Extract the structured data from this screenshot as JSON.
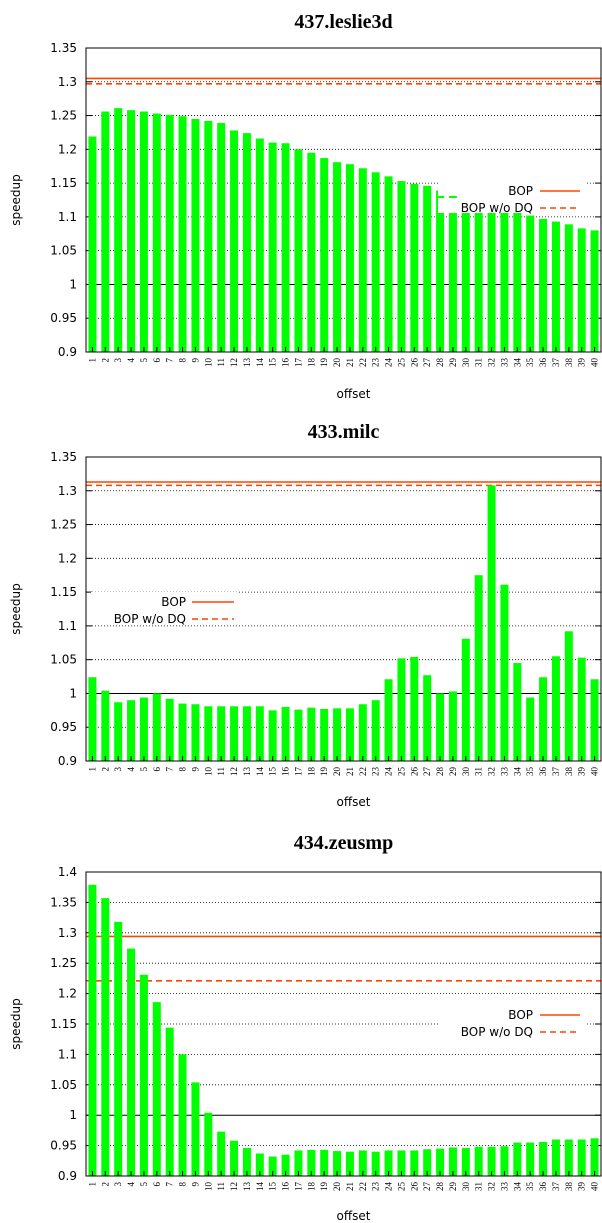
{
  "chart_data": [
    {
      "type": "bar",
      "title": "437.leslie3d",
      "xlabel": "offset",
      "ylabel": "speedup",
      "ylim": [
        0.9,
        1.35
      ],
      "yticks": [
        "0.9",
        "0.95",
        "1",
        "1.05",
        "1.1",
        "1.15",
        "1.2",
        "1.25",
        "1.3",
        "1.35"
      ],
      "categories": [
        "1",
        "2",
        "3",
        "4",
        "5",
        "6",
        "7",
        "8",
        "9",
        "10",
        "11",
        "12",
        "13",
        "14",
        "15",
        "16",
        "17",
        "18",
        "19",
        "20",
        "21",
        "22",
        "23",
        "24",
        "25",
        "26",
        "27",
        "28",
        "29",
        "30",
        "31",
        "32",
        "33",
        "34",
        "35",
        "36",
        "37",
        "38",
        "39",
        "40"
      ],
      "values": [
        1.219,
        1.256,
        1.261,
        1.258,
        1.256,
        1.253,
        1.251,
        1.249,
        1.245,
        1.242,
        1.239,
        1.228,
        1.224,
        1.216,
        1.21,
        1.209,
        1.2,
        1.195,
        1.187,
        1.181,
        1.178,
        1.172,
        1.166,
        1.16,
        1.153,
        1.149,
        1.146,
        1.139,
        1.134,
        1.128,
        1.123,
        1.118,
        1.113,
        1.106,
        1.102,
        1.097,
        1.093,
        1.089,
        1.083,
        1.08
      ],
      "bar_color": "#00ff00",
      "reference_lines": [
        {
          "name": "BOP",
          "value": 1.305,
          "style": "solid",
          "color": "#ff4500"
        },
        {
          "name": "BOP w/o DQ",
          "value": 1.297,
          "style": "dashed",
          "color": "#ff4500"
        }
      ],
      "legend_position": "right",
      "grid": "horizontal dotted"
    },
    {
      "type": "bar",
      "title": "433.milc",
      "xlabel": "offset",
      "ylabel": "speedup",
      "ylim": [
        0.9,
        1.35
      ],
      "yticks": [
        "0.9",
        "0.95",
        "1",
        "1.05",
        "1.1",
        "1.15",
        "1.2",
        "1.25",
        "1.3",
        "1.35"
      ],
      "categories": [
        "1",
        "2",
        "3",
        "4",
        "5",
        "6",
        "7",
        "8",
        "9",
        "10",
        "11",
        "12",
        "13",
        "14",
        "15",
        "16",
        "17",
        "18",
        "19",
        "20",
        "21",
        "22",
        "23",
        "24",
        "25",
        "26",
        "27",
        "28",
        "29",
        "30",
        "31",
        "32",
        "33",
        "34",
        "35",
        "36",
        "37",
        "38",
        "39",
        "40"
      ],
      "values": [
        1.024,
        1.004,
        0.987,
        0.99,
        0.994,
        1.0,
        0.992,
        0.985,
        0.984,
        0.981,
        0.981,
        0.981,
        0.981,
        0.981,
        0.975,
        0.98,
        0.976,
        0.979,
        0.977,
        0.978,
        0.978,
        0.984,
        0.99,
        1.021,
        1.052,
        1.054,
        1.027,
        1.0,
        1.003,
        1.081,
        1.175,
        1.308,
        1.161,
        1.045,
        0.994,
        1.024,
        1.055,
        1.092,
        1.053,
        1.021
      ],
      "bar_color": "#00ff00",
      "reference_lines": [
        {
          "name": "BOP",
          "value": 1.313,
          "style": "solid",
          "color": "#ff4500"
        },
        {
          "name": "BOP w/o DQ",
          "value": 1.308,
          "style": "dashed",
          "color": "#ff4500"
        }
      ],
      "legend_position": "left",
      "grid": "horizontal dotted"
    },
    {
      "type": "bar",
      "title": "434.zeusmp",
      "xlabel": "offset",
      "ylabel": "speedup",
      "ylim": [
        0.9,
        1.4
      ],
      "yticks": [
        "0.9",
        "0.95",
        "1",
        "1.05",
        "1.1",
        "1.15",
        "1.2",
        "1.25",
        "1.3",
        "1.35",
        "1.4"
      ],
      "categories": [
        "1",
        "2",
        "3",
        "4",
        "5",
        "6",
        "7",
        "8",
        "9",
        "10",
        "11",
        "12",
        "13",
        "14",
        "15",
        "16",
        "17",
        "18",
        "19",
        "20",
        "21",
        "22",
        "23",
        "24",
        "25",
        "26",
        "27",
        "28",
        "29",
        "30",
        "31",
        "32",
        "33",
        "34",
        "35",
        "36",
        "37",
        "38",
        "39",
        "40"
      ],
      "values": [
        1.379,
        1.357,
        1.318,
        1.274,
        1.231,
        1.186,
        1.144,
        1.1,
        1.054,
        1.004,
        0.973,
        0.958,
        0.946,
        0.937,
        0.932,
        0.935,
        0.942,
        0.943,
        0.943,
        0.941,
        0.94,
        0.942,
        0.94,
        0.942,
        0.942,
        0.942,
        0.944,
        0.945,
        0.947,
        0.946,
        0.948,
        0.948,
        0.949,
        0.955,
        0.955,
        0.956,
        0.96,
        0.96,
        0.96,
        0.962
      ],
      "bar_color": "#00ff00",
      "reference_lines": [
        {
          "name": "BOP",
          "value": 1.294,
          "style": "solid",
          "color": "#ff4500"
        },
        {
          "name": "BOP w/o DQ",
          "value": 1.221,
          "style": "dashed",
          "color": "#ff4500"
        }
      ],
      "legend_position": "right",
      "grid": "horizontal dotted"
    }
  ]
}
